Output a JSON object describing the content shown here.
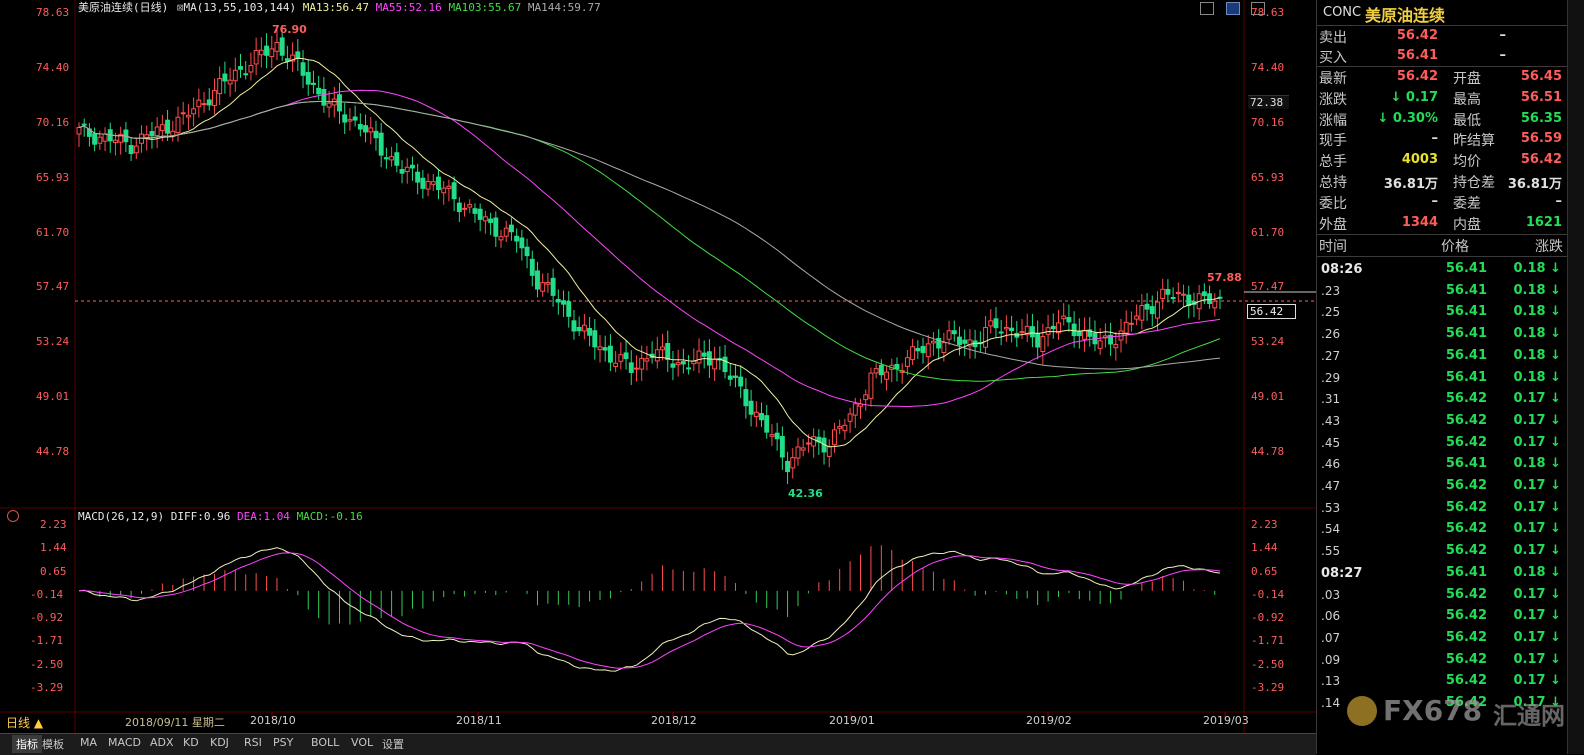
{
  "header": {
    "main_title": "美原油连续(日线)",
    "ma_label": "MA(13,55,103,144)",
    "ma13": "MA13:56.47",
    "ma55": "MA55:52.16",
    "ma103": "MA103:55.67",
    "ma144": "MA144:59.77",
    "macd_title": "MACD(26,12,9)",
    "diff": "DIFF:0.96",
    "dea": "DEA:1.04",
    "macd": "MACD:-0.16"
  },
  "colors": {
    "up": "#ff4d4d",
    "down": "#22dd88",
    "ma13": "#f0f0a0",
    "ma55": "#ff44ff",
    "ma103": "#44dd44",
    "ma144": "#aaaaaa"
  },
  "price_axis": {
    "ticks": [
      "78.63",
      "74.40",
      "70.16",
      "65.93",
      "61.70",
      "57.47",
      "53.24",
      "49.01",
      "44.78"
    ],
    "tick_values": [
      78.63,
      74.4,
      70.16,
      65.93,
      61.7,
      57.47,
      53.24,
      49.01,
      44.78
    ],
    "marker_7238": "72.38",
    "current": "56.42",
    "current_value": 56.42
  },
  "macd_axis": {
    "ticks": [
      "2.23",
      "1.44",
      "0.65",
      "-0.14",
      "-0.92",
      "-1.71",
      "-2.50",
      "-3.29"
    ],
    "tick_values": [
      2.23,
      1.44,
      0.65,
      -0.14,
      -0.92,
      -1.71,
      -2.5,
      -3.29
    ]
  },
  "annotations": {
    "high": "76.90",
    "low": "42.36",
    "recent_high": "57.88"
  },
  "x_axis": {
    "date_readout": "2018/09/11 星期二",
    "labels": [
      "2018/10",
      "2018/11",
      "2018/12",
      "2019/01",
      "2019/02",
      "2019/03"
    ]
  },
  "tabs": [
    "日线 ▲",
    "指标",
    "模板",
    "MA",
    "MACD",
    "ADX",
    "KD",
    "KDJ",
    "RSI",
    "PSY",
    "BOLL",
    "VOL",
    "设置"
  ],
  "quote": {
    "code": "CONC",
    "name": "美原油连续",
    "sell_label": "卖出",
    "sell_price": "56.42",
    "sell_vol": "–",
    "buy_label": "买入",
    "buy_price": "56.41",
    "buy_vol": "–",
    "rows": [
      {
        "l1": "最新",
        "v1": "56.42",
        "l2": "开盘",
        "v2": "56.45"
      },
      {
        "l1": "涨跌",
        "v1": "↓ 0.17",
        "l2": "最高",
        "v2": "56.51"
      },
      {
        "l1": "涨幅",
        "v1": "↓ 0.30%",
        "l2": "最低",
        "v2": "56.35"
      },
      {
        "l1": "现手",
        "v1": "–",
        "l2": "昨结算",
        "v2": "56.59"
      },
      {
        "l1": "总手",
        "v1": "4003",
        "l2": "均价",
        "v2": "56.42"
      },
      {
        "l1": "总持",
        "v1": "36.81万",
        "l2": "持仓差",
        "v2": "36.81万"
      },
      {
        "l1": "委比",
        "v1": "–",
        "l2": "委差",
        "v2": "–"
      },
      {
        "l1": "外盘",
        "v1": "1344",
        "l2": "内盘",
        "v2": "1621"
      }
    ],
    "tick_header": {
      "time": "时间",
      "price": "价格",
      "change": "涨跌"
    },
    "ticks": [
      {
        "t": "08:26",
        "p": "56.41",
        "c": "0.18 ↓",
        "big": true
      },
      {
        "t": ".23",
        "p": "56.41",
        "c": "0.18 ↓"
      },
      {
        "t": ".25",
        "p": "56.41",
        "c": "0.18 ↓"
      },
      {
        "t": ".26",
        "p": "56.41",
        "c": "0.18 ↓"
      },
      {
        "t": ".27",
        "p": "56.41",
        "c": "0.18 ↓"
      },
      {
        "t": ".29",
        "p": "56.41",
        "c": "0.18 ↓"
      },
      {
        "t": ".31",
        "p": "56.42",
        "c": "0.17 ↓"
      },
      {
        "t": ".43",
        "p": "56.42",
        "c": "0.17 ↓"
      },
      {
        "t": ".45",
        "p": "56.42",
        "c": "0.17 ↓"
      },
      {
        "t": ".46",
        "p": "56.41",
        "c": "0.18 ↓"
      },
      {
        "t": ".47",
        "p": "56.42",
        "c": "0.17 ↓"
      },
      {
        "t": ".53",
        "p": "56.42",
        "c": "0.17 ↓"
      },
      {
        "t": ".54",
        "p": "56.42",
        "c": "0.17 ↓"
      },
      {
        "t": ".55",
        "p": "56.42",
        "c": "0.17 ↓"
      },
      {
        "t": "08:27",
        "p": "56.41",
        "c": "0.18 ↓",
        "big": true
      },
      {
        "t": ".03",
        "p": "56.42",
        "c": "0.17 ↓"
      },
      {
        "t": ".06",
        "p": "56.42",
        "c": "0.17 ↓"
      },
      {
        "t": ".07",
        "p": "56.42",
        "c": "0.17 ↓"
      },
      {
        "t": ".09",
        "p": "56.42",
        "c": "0.17 ↓"
      },
      {
        "t": ".13",
        "p": "56.42",
        "c": "0.17 ↓"
      },
      {
        "t": ".14",
        "p": "56.42",
        "c": "0.17 ↓"
      }
    ]
  },
  "watermark": {
    "brand": "FX678",
    "cn": "汇通网"
  }
}
